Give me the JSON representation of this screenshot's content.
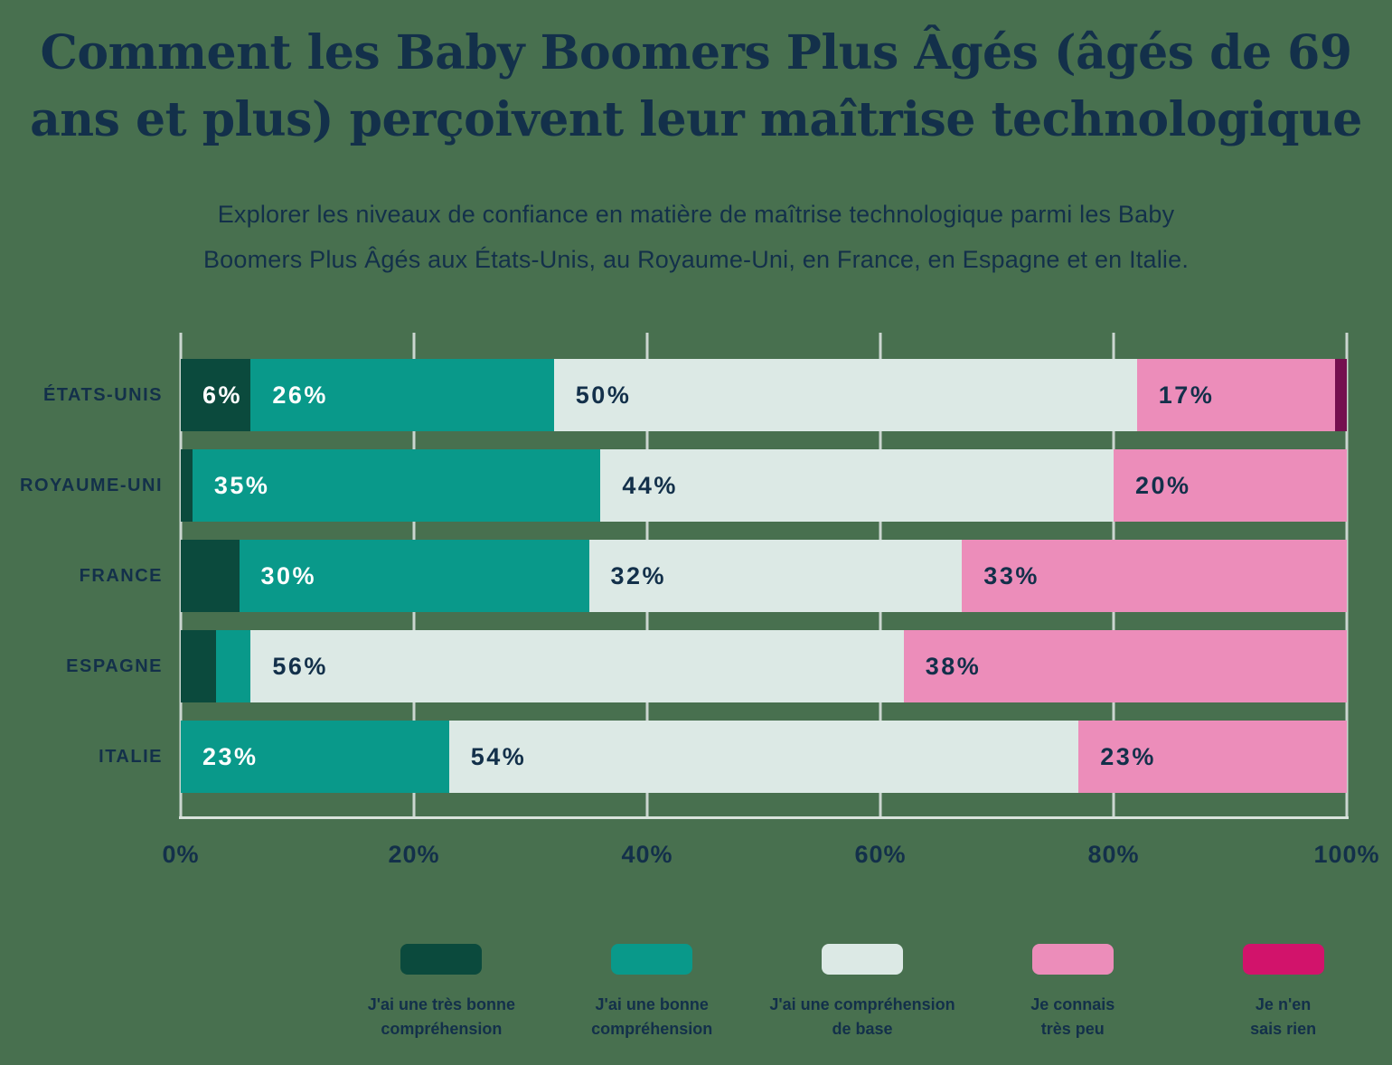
{
  "title": {
    "line1": "Comment les Baby Boomers Plus Âgés (âgés de 69",
    "line2": "ans et plus) perçoivent leur maîtrise technologique"
  },
  "subtitle": {
    "line1": "Explorer les niveaux de confiance en matière de maîtrise technologique parmi les Baby",
    "line2": "Boomers Plus Âgés aux États-Unis, au Royaume-Uni, en France, en Espagne et en Italie."
  },
  "colors": {
    "background": "#48704F",
    "text_navy": "#13304A",
    "gridline": "#CBD6D0",
    "axis_line": "#D9E3DC"
  },
  "chart_data": {
    "type": "bar",
    "stacked": true,
    "orientation": "horizontal",
    "grid": true,
    "xlim": [
      0,
      100
    ],
    "min_label_pct": 6,
    "categories": [
      "ÉTATS-UNIS",
      "ROYAUME-UNI",
      "FRANCE",
      "ESPAGNE",
      "ITALIE"
    ],
    "x_ticks": [
      {
        "pct": 0,
        "label": "0%"
      },
      {
        "pct": 20,
        "label": "20%"
      },
      {
        "pct": 40,
        "label": "40%"
      },
      {
        "pct": 60,
        "label": "60%"
      },
      {
        "pct": 80,
        "label": "80%"
      },
      {
        "pct": 100,
        "label": "100%"
      }
    ],
    "series": [
      {
        "name": "J'ai une très bonne compréhension",
        "legend_lines": [
          "J'ai une très bonne",
          "compréhension"
        ],
        "color": "#0B4A3D",
        "label_color": "#FFFFFF",
        "values": [
          6,
          1,
          5,
          3,
          0
        ]
      },
      {
        "name": "J'ai une bonne compréhension",
        "legend_lines": [
          "J'ai une bonne",
          "compréhension"
        ],
        "color": "#09998A",
        "label_color": "#FFFFFF",
        "values": [
          26,
          35,
          30,
          3,
          23
        ]
      },
      {
        "name": "J'ai une compréhension de base",
        "legend_lines": [
          "J'ai une compréhension",
          "de base"
        ],
        "color": "#DCE9E5",
        "label_color": "#13304A",
        "values": [
          50,
          44,
          32,
          56,
          54
        ]
      },
      {
        "name": "Je connais très peu",
        "legend_lines": [
          "Je connais",
          "très peu"
        ],
        "color": "#EC8DBA",
        "label_color": "#13304A",
        "values": [
          17,
          20,
          33,
          38,
          23
        ]
      },
      {
        "name": "Je n'en sais rien",
        "legend_lines": [
          "Je n'en",
          "sais rien"
        ],
        "color": "#D2136B",
        "bar_color": "#74104F",
        "label_color": "#13304A",
        "values": [
          1,
          0,
          0,
          0,
          0
        ]
      }
    ]
  }
}
